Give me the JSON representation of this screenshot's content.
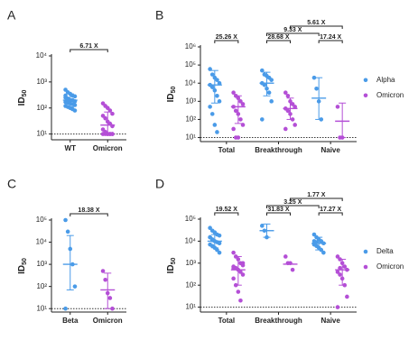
{
  "chart_data": [
    {
      "type": "scatter",
      "panel": "A",
      "ylabel": "ID",
      "ylabel_sub": "50",
      "log_y": true,
      "ylim": [
        6,
        10000
      ],
      "yticks": [
        {
          "value": 10,
          "label": "10¹"
        },
        {
          "value": 100,
          "label": "10²"
        },
        {
          "value": 1000,
          "label": "10³"
        },
        {
          "value": 10000,
          "label": "10⁴"
        }
      ],
      "lod": 10,
      "categories": [
        "WT",
        "Omicron"
      ],
      "colors": [
        "#4a9be8",
        "#b44fd6"
      ],
      "points": [
        [
          500,
          400,
          350,
          300,
          280,
          250,
          230,
          200,
          200,
          180,
          170,
          160,
          150,
          140,
          130,
          120,
          110,
          100,
          90,
          80,
          300,
          220
        ],
        [
          150,
          120,
          100,
          80,
          60,
          50,
          40,
          30,
          25,
          20,
          15,
          12,
          10,
          10,
          10,
          10,
          10,
          10,
          10,
          10
        ]
      ],
      "mean": [
        200,
        22
      ],
      "lower": [
        110,
        10
      ],
      "upper": [
        350,
        70
      ],
      "brackets": [
        {
          "label": "6.71 X",
          "categories": [
            "WT",
            "Omicron"
          ]
        }
      ]
    },
    {
      "type": "scatter",
      "panel": "B",
      "ylabel": "ID",
      "ylabel_sub": "50",
      "log_y": true,
      "ylim": [
        6,
        1000000
      ],
      "yticks": [
        {
          "value": 10,
          "label": "10¹"
        },
        {
          "value": 100,
          "label": "10²"
        },
        {
          "value": 1000,
          "label": "10³"
        },
        {
          "value": 10000,
          "label": "10⁴"
        },
        {
          "value": 100000,
          "label": "10⁵"
        },
        {
          "value": 1000000,
          "label": "10⁶"
        }
      ],
      "lod": 10,
      "legend": "right",
      "categories": [
        "Total",
        "Breakthrough",
        "Naive"
      ],
      "series": [
        {
          "name": "Alpha",
          "color": "#4a9be8",
          "points": [
            [
              60000,
              30000,
              20000,
              15000,
              10000,
              8000,
              6000,
              4000,
              2000,
              1000,
              500,
              200,
              50,
              20
            ],
            [
              50000,
              30000,
              25000,
              20000,
              15000,
              10000,
              8000,
              5000,
              3000,
              1000,
              100
            ],
            [
              20000,
              5000,
              1000,
              100
            ]
          ],
          "mean": [
            8000,
            10000,
            1500
          ],
          "lower": [
            800,
            2000,
            100
          ],
          "upper": [
            50000,
            40000,
            20000
          ]
        },
        {
          "name": "Omicron",
          "color": "#b44fd6",
          "points": [
            [
              3000,
              2000,
              1500,
              1000,
              700,
              500,
              300,
              200,
              100,
              50,
              30,
              10,
              10
            ],
            [
              3000,
              2000,
              1000,
              700,
              500,
              400,
              300,
              200,
              100,
              50,
              30
            ],
            [
              500,
              10,
              10
            ]
          ],
          "mean": [
            500,
            400,
            80
          ],
          "lower": [
            60,
            100,
            10
          ],
          "upper": [
            2000,
            1500,
            800
          ]
        }
      ],
      "brackets": [
        {
          "label": "25.26 X",
          "category": "Total"
        },
        {
          "label": "28.68 X",
          "category": "Breakthrough"
        },
        {
          "label": "17.24 X",
          "category": "Naive"
        },
        {
          "label": "9.33 X",
          "series": "Alpha",
          "categories": [
            "Breakthrough",
            "Naive"
          ]
        },
        {
          "label": "5.61 X",
          "series": "Omicron",
          "categories": [
            "Breakthrough",
            "Naive"
          ]
        }
      ]
    },
    {
      "type": "scatter",
      "panel": "C",
      "ylabel": "ID",
      "ylabel_sub": "50",
      "log_y": true,
      "ylim": [
        7,
        100000
      ],
      "yticks": [
        {
          "value": 10,
          "label": "10¹"
        },
        {
          "value": 100,
          "label": "10²"
        },
        {
          "value": 1000,
          "label": "10³"
        },
        {
          "value": 10000,
          "label": "10⁴"
        },
        {
          "value": 100000,
          "label": "10⁵"
        }
      ],
      "lod": 10,
      "categories": [
        "Beta",
        "Omicron"
      ],
      "colors": [
        "#4a9be8",
        "#b44fd6"
      ],
      "points": [
        [
          100000,
          30000,
          5000,
          1000,
          100,
          10
        ],
        [
          500,
          200,
          50,
          30,
          10
        ]
      ],
      "mean": [
        1000,
        70
      ],
      "lower": [
        70,
        10
      ],
      "upper": [
        20000,
        400
      ],
      "brackets": [
        {
          "label": "18.38 X",
          "categories": [
            "Beta",
            "Omicron"
          ]
        }
      ]
    },
    {
      "type": "scatter",
      "panel": "D",
      "ylabel": "ID",
      "ylabel_sub": "50",
      "log_y": true,
      "ylim": [
        6,
        100000
      ],
      "yticks": [
        {
          "value": 10,
          "label": "10¹"
        },
        {
          "value": 100,
          "label": "10²"
        },
        {
          "value": 1000,
          "label": "10³"
        },
        {
          "value": 10000,
          "label": "10⁴"
        },
        {
          "value": 100000,
          "label": "10⁵"
        }
      ],
      "lod": 10,
      "legend": "right",
      "categories": [
        "Total",
        "Breakthrough",
        "Naive"
      ],
      "series": [
        {
          "name": "Delta",
          "color": "#4a9be8",
          "points": [
            [
              40000,
              30000,
              25000,
              20000,
              18000,
              15000,
              12000,
              10000,
              9000,
              8000,
              7000,
              6000,
              5000,
              4000,
              3000,
              15000,
              11000
            ],
            [
              50000,
              30000,
              15000
            ],
            [
              20000,
              15000,
              12000,
              10000,
              8000,
              7000,
              6000,
              5000,
              4000,
              3000,
              10000,
              9000
            ]
          ],
          "mean": [
            10000,
            30000,
            8000
          ],
          "lower": [
            5000,
            15000,
            4000
          ],
          "upper": [
            20000,
            60000,
            15000
          ]
        },
        {
          "name": "Omicron",
          "color": "#b44fd6",
          "points": [
            [
              3000,
              2000,
              1500,
              1000,
              800,
              700,
              600,
              500,
              400,
              300,
              200,
              100,
              50,
              20,
              1000,
              600
            ],
            [
              2000,
              1000,
              1000,
              500
            ],
            [
              2000,
              1500,
              1000,
              700,
              500,
              400,
              300,
              200,
              100,
              30,
              10,
              600
            ]
          ],
          "mean": [
            500,
            900,
            500
          ],
          "lower": [
            100,
            900,
            100
          ],
          "upper": [
            2000,
            900,
            1500
          ]
        }
      ],
      "brackets": [
        {
          "label": "19.52 X",
          "category": "Total"
        },
        {
          "label": "31.83 X",
          "category": "Breakthrough"
        },
        {
          "label": "17.27 X",
          "category": "Naive"
        },
        {
          "label": "3.25 X",
          "series": "Delta",
          "categories": [
            "Breakthrough",
            "Naive"
          ]
        },
        {
          "label": "1.77 X",
          "series": "Omicron",
          "categories": [
            "Breakthrough",
            "Naive"
          ]
        }
      ]
    }
  ]
}
